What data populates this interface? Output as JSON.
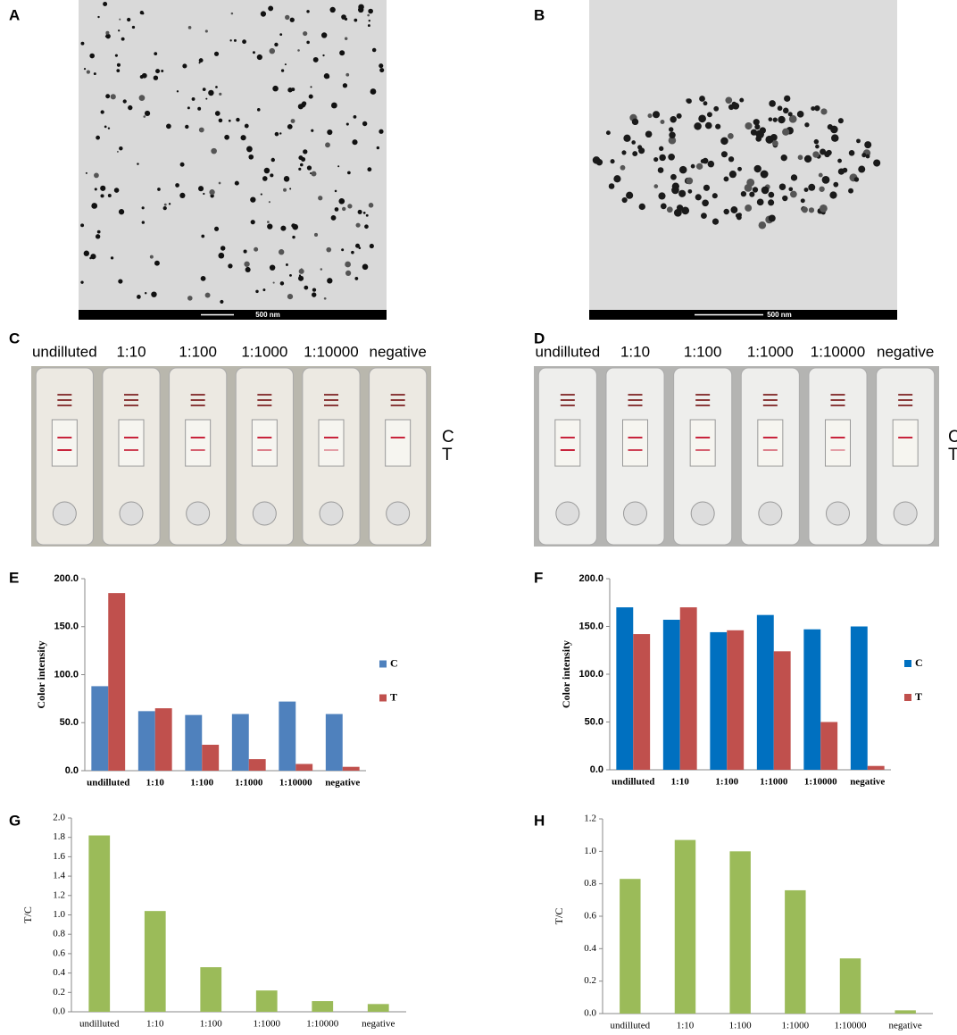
{
  "panels": [
    {
      "label": "A",
      "scale_bar": "500 nm"
    },
    {
      "label": "B",
      "scale_bar": "500 nm"
    },
    {
      "label": "C",
      "strip_labels": [
        "undilluted",
        "1:10",
        "1:100",
        "1:1000",
        "1:10000",
        "negative"
      ],
      "line_labels": [
        "C",
        "T"
      ]
    },
    {
      "label": "D",
      "strip_labels": [
        "undilluted",
        "1:10",
        "1:100",
        "1:1000",
        "1:10000",
        "negative"
      ],
      "line_labels": [
        "C",
        "T"
      ]
    },
    {
      "label": "E"
    },
    {
      "label": "F"
    },
    {
      "label": "G"
    },
    {
      "label": "H"
    }
  ],
  "chart_data": [
    {
      "type": "bar",
      "y_label": "Color intensity",
      "categories": [
        "undilluted",
        "1:10",
        "1:100",
        "1:1000",
        "1:10000",
        "negative"
      ],
      "series": [
        {
          "name": "C",
          "color": "#4f81bd",
          "values": [
            88,
            62,
            58,
            59,
            72,
            59
          ]
        },
        {
          "name": "T",
          "color": "#c0504d",
          "values": [
            185,
            65,
            27,
            12,
            7,
            4
          ]
        }
      ],
      "ylim": [
        0,
        200
      ],
      "yticks": [
        {
          "value": 0,
          "label": "0.0"
        },
        {
          "value": 50,
          "label": "50.0"
        },
        {
          "value": 100,
          "label": "100.0"
        },
        {
          "value": 150,
          "label": "150.0"
        },
        {
          "value": 200,
          "label": "200.0"
        }
      ],
      "legend": "right"
    },
    {
      "type": "bar",
      "y_label": "Color intensity",
      "categories": [
        "undilluted",
        "1:10",
        "1:100",
        "1:1000",
        "1:10000",
        "negative"
      ],
      "series": [
        {
          "name": "C",
          "color": "#0070c0",
          "values": [
            170,
            157,
            144,
            162,
            147,
            150
          ]
        },
        {
          "name": "T",
          "color": "#c0504d",
          "values": [
            142,
            170,
            146,
            124,
            50,
            4
          ]
        }
      ],
      "ylim": [
        0,
        200
      ],
      "yticks": [
        {
          "value": 0,
          "label": "0.0"
        },
        {
          "value": 50,
          "label": "50.0"
        },
        {
          "value": 100,
          "label": "100.0"
        },
        {
          "value": 150,
          "label": "150.0"
        },
        {
          "value": 200,
          "label": "200.0"
        }
      ],
      "legend": "right"
    },
    {
      "type": "bar",
      "y_label": "T/C",
      "categories": [
        "undilluted",
        "1:10",
        "1:100",
        "1:1000",
        "1:10000",
        "negative"
      ],
      "values": [
        1.82,
        1.04,
        0.46,
        0.22,
        0.11,
        0.08
      ],
      "color": "#9bbb59",
      "ylim": [
        0,
        2
      ],
      "yticks": [
        {
          "value": 0,
          "label": "0.0"
        },
        0.2,
        0.4,
        0.6,
        0.8,
        {
          "value": 1,
          "label": "1.0"
        },
        1.2,
        1.4,
        1.6,
        1.8,
        {
          "value": 2,
          "label": "2.0"
        }
      ]
    },
    {
      "type": "bar",
      "y_label": "T/C",
      "categories": [
        "undilluted",
        "1:10",
        "1:100",
        "1:1000",
        "1:10000",
        "negative"
      ],
      "values": [
        0.83,
        1.07,
        1.0,
        0.76,
        0.34,
        0.02
      ],
      "color": "#9bbb59",
      "ylim": [
        0,
        1.2
      ],
      "yticks": [
        {
          "value": 0,
          "label": "0.0"
        },
        0.2,
        0.4,
        0.6,
        0.8,
        {
          "value": 1,
          "label": "1.0"
        },
        1.2
      ]
    }
  ]
}
